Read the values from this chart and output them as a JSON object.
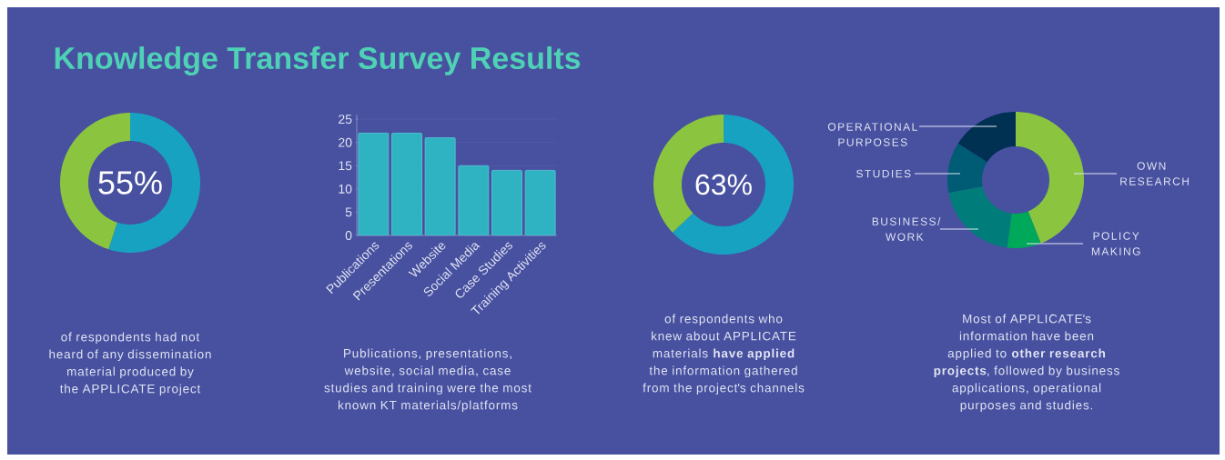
{
  "chart_data": [
    {
      "type": "donut",
      "title": "Knowledge Transfer Survey Results",
      "categories": [
        null,
        null
      ],
      "values": [
        55,
        45
      ],
      "colors": [
        "#17a2c2",
        "#8bc53f"
      ],
      "value_labels": [
        "55%",
        null
      ],
      "annotations": [
        "of respondents had not heard of any dissemination material produced by the APPLICATE project"
      ]
    },
    {
      "type": "bar",
      "categories": [
        "Publications",
        "Presentations",
        "Website",
        "Social Media",
        "Case Studies",
        "Training Activities"
      ],
      "values": [
        22,
        22,
        21,
        15,
        14,
        14
      ],
      "color": "#2fb3c3",
      "ylim": [
        0,
        26
      ],
      "yticks": [
        0,
        5,
        10,
        15,
        20,
        25
      ],
      "grid": "y",
      "annotations": [
        "Publications, presentations, website, social media, case studies and training were the most known KT materials/platforms"
      ]
    },
    {
      "type": "donut",
      "categories": [
        null,
        null
      ],
      "values": [
        63,
        37
      ],
      "colors": [
        "#17a2c2",
        "#8bc53f"
      ],
      "value_labels": [
        "63%",
        null
      ],
      "annotations": [
        "of respondents who knew about APPLICATE materials **have applied** the information gathered from the project's channels"
      ]
    },
    {
      "type": "donut",
      "categories": [
        "OWN RESEARCH",
        "POLICY MAKING",
        "BUSINESS/ WORK",
        "STUDIES",
        "OPERATIONAL PURPOSES"
      ],
      "values": [
        44,
        8,
        20,
        12,
        16
      ],
      "colors": [
        "#8bc53f",
        "#00a85a",
        "#007d7a",
        "#005b74",
        "#003153"
      ],
      "annotations": [
        "Most of APPLICATE's information have been applied to **other research projects**, followed by business applications, operational purposes and studies."
      ]
    }
  ]
}
